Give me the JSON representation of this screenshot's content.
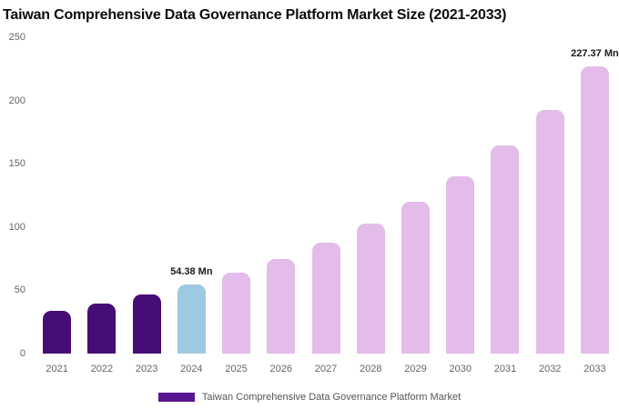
{
  "title": "Taiwan Comprehensive Data Governance Platform Market Size (2021-2033)",
  "legend": {
    "label": "Taiwan Comprehensive Data Governance Platform Market",
    "swatch_color": "#5a1690"
  },
  "colors": {
    "historical": "#470d76",
    "current": "#9ec9e2",
    "forecast": "#e3bce9"
  },
  "chart_data": {
    "type": "bar",
    "title": "Taiwan Comprehensive Data Governance Platform Market Size (2021-2033)",
    "categories": [
      "2021",
      "2022",
      "2023",
      "2024",
      "2025",
      "2026",
      "2027",
      "2028",
      "2029",
      "2030",
      "2031",
      "2032",
      "2033"
    ],
    "values": [
      33.8,
      39.6,
      46.4,
      54.38,
      63.7,
      74.6,
      87.4,
      102.4,
      119.9,
      140.4,
      164.5,
      192.7,
      227.37
    ],
    "roles": [
      "historical",
      "historical",
      "historical",
      "current",
      "forecast",
      "forecast",
      "forecast",
      "forecast",
      "forecast",
      "forecast",
      "forecast",
      "forecast",
      "forecast"
    ],
    "annotations": [
      {
        "category": "2024",
        "text": "54.38 Mn"
      },
      {
        "category": "2033",
        "text": "227.37 Mn"
      }
    ],
    "xlabel": "",
    "ylabel": "",
    "ylim": [
      0,
      250
    ],
    "yticks": [
      0,
      50,
      100,
      150,
      200,
      250
    ],
    "grid": "off",
    "legend_position": "bottom"
  }
}
